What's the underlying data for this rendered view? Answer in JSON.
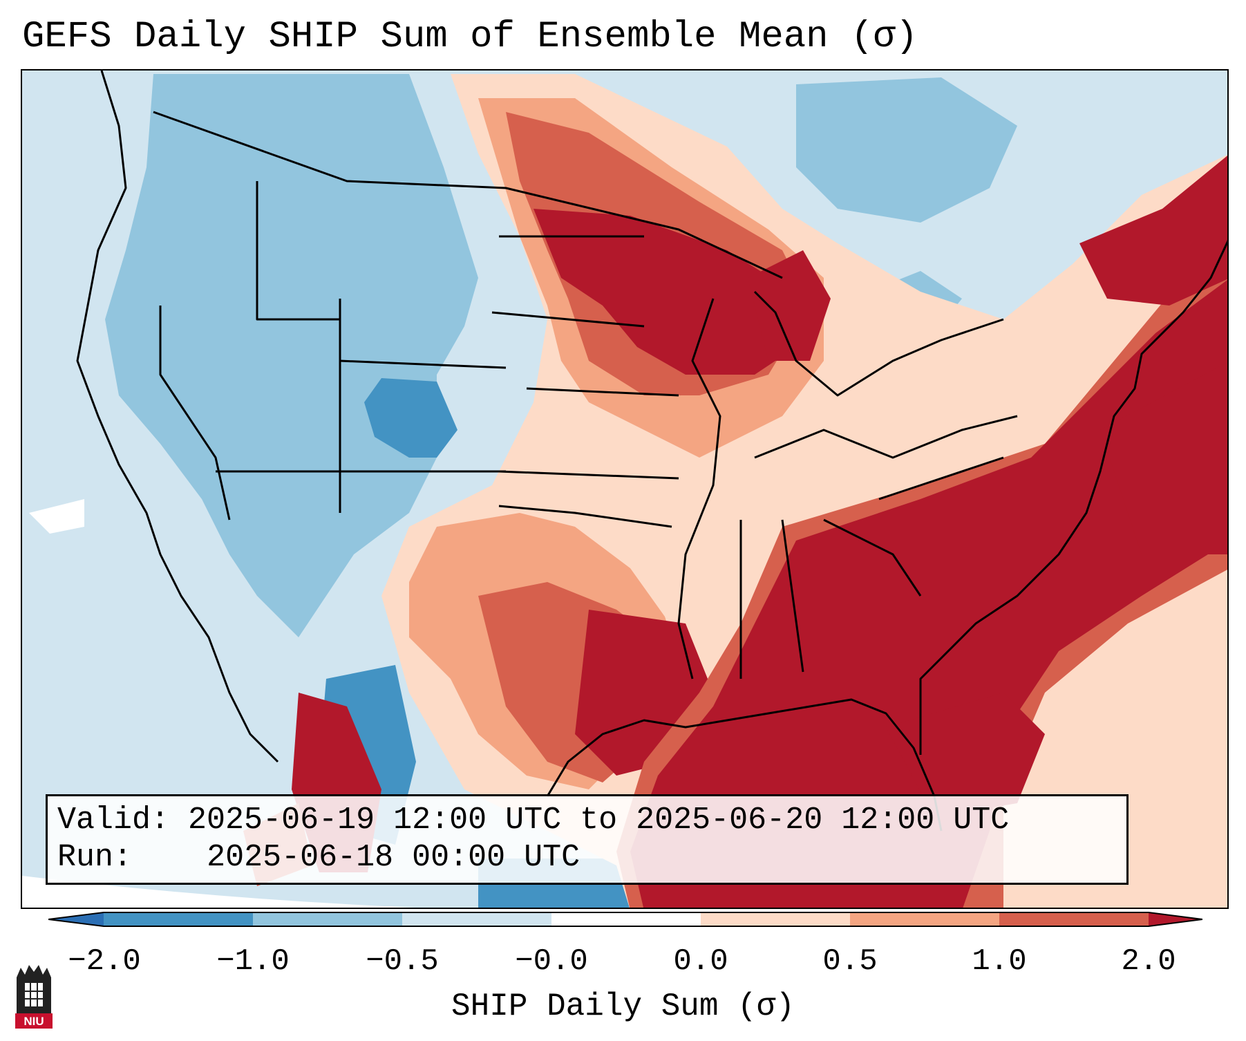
{
  "title": "GEFS Daily SHIP Sum of Ensemble Mean (σ)",
  "info_box": {
    "valid_label": "Valid:",
    "valid_value": "2025-06-19 12:00 UTC to 2025-06-20 12:00 UTC",
    "run_label": "Run:",
    "run_value": "2025-06-18 00:00 UTC"
  },
  "colorbar": {
    "label": "SHIP Daily Sum (σ)",
    "tick_labels": [
      "−2.0",
      "−1.0",
      "−0.5",
      "−0.0",
      "0.0",
      "0.5",
      "1.0",
      "2.0"
    ],
    "bins": [
      {
        "range": "<-2.0",
        "color": "#2b6fb5"
      },
      {
        "range": "-2.0 to -1.0",
        "color": "#4393c3"
      },
      {
        "range": "-1.0 to -0.5",
        "color": "#92c5de"
      },
      {
        "range": "-0.5 to -0.0",
        "color": "#d1e5f0"
      },
      {
        "range": "-0.0 to 0.0",
        "color": "#ffffff"
      },
      {
        "range": "0.0 to 0.5",
        "color": "#fddbc7"
      },
      {
        "range": "0.5 to 1.0",
        "color": "#f4a582"
      },
      {
        "range": "1.0 to 2.0",
        "color": "#d6604d"
      },
      {
        "range": ">2.0",
        "color": "#b2182b"
      }
    ],
    "extend": "both"
  },
  "map": {
    "projection": "Lambert conformal over the contiguous United States",
    "field": "SHIP daily sum anomaly (sigma)",
    "colors": {
      "ocean_background": "#d1e5f0",
      "boundaries": "#000000"
    }
  },
  "logo": {
    "text": "NIU",
    "colors": {
      "banner": "#c8102e",
      "tower": "#222222"
    }
  }
}
